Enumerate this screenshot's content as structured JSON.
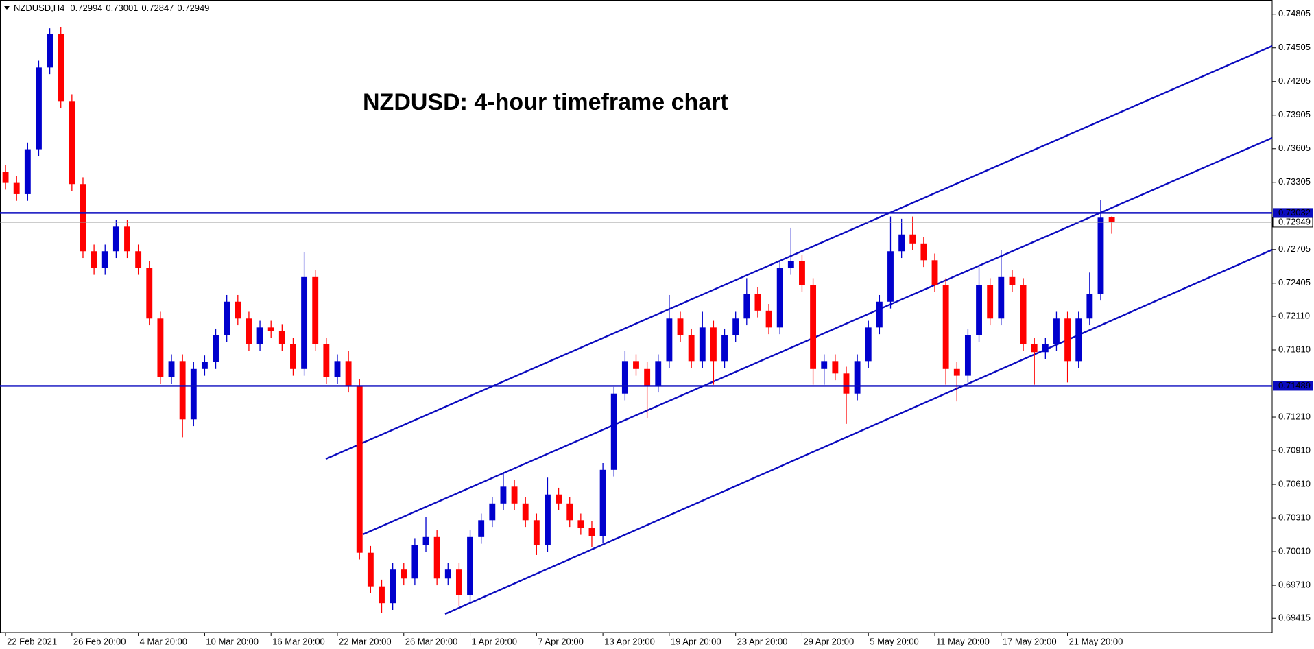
{
  "chart_data": {
    "type": "candlestick",
    "symbol": "NZDUSD,H4",
    "title": "NZDUSD: 4-hour timeframe chart",
    "up_color": "#0000cd",
    "down_color": "#ff0000",
    "line_color": "#0b0bbf",
    "xlim": [
      -0.5,
      114.5
    ],
    "ylim": [
      0.69288,
      0.74932
    ],
    "xticks": [
      {
        "value": 0,
        "label": "22 Feb 2021"
      },
      {
        "value": 6,
        "label": "26 Feb 20:00"
      },
      {
        "value": 12,
        "label": "4 Mar 20:00"
      },
      {
        "value": 18,
        "label": "10 Mar 20:00"
      },
      {
        "value": 24,
        "label": "16 Mar 20:00"
      },
      {
        "value": 30,
        "label": "22 Mar 20:00"
      },
      {
        "value": 36,
        "label": "26 Mar 20:00"
      },
      {
        "value": 42,
        "label": "1 Apr 20:00"
      },
      {
        "value": 48,
        "label": "7 Apr 20:00"
      },
      {
        "value": 54,
        "label": "13 Apr 20:00"
      },
      {
        "value": 60,
        "label": "19 Apr 20:00"
      },
      {
        "value": 66,
        "label": "23 Apr 20:00"
      },
      {
        "value": 72,
        "label": "29 Apr 20:00"
      },
      {
        "value": 78,
        "label": "5 May 20:00"
      },
      {
        "value": 84,
        "label": "11 May 20:00"
      },
      {
        "value": 90,
        "label": "17 May 20:00"
      },
      {
        "value": 96,
        "label": "21 May 20:00"
      }
    ],
    "yticks": [
      0.74805,
      0.74505,
      0.74205,
      0.73905,
      0.73605,
      0.73305,
      0.72705,
      0.72405,
      {
        "value": 0.7211,
        "label": "0.72110"
      },
      {
        "value": 0.7181,
        "label": "0.71810"
      },
      {
        "value": 0.7121,
        "label": "0.71210"
      },
      {
        "value": 0.7091,
        "label": "0.70910"
      },
      {
        "value": 0.7061,
        "label": "0.70610"
      },
      {
        "value": 0.7031,
        "label": "0.70310"
      },
      {
        "value": 0.7001,
        "label": "0.70010"
      },
      {
        "value": 0.6971,
        "label": "0.69710"
      },
      0.69415
    ],
    "hlines": [
      0.73032,
      0.71489
    ],
    "current_price": 0.72949,
    "open": [
      0.734,
      0.733,
      0.732,
      0.736,
      0.7433,
      0.7463,
      0.7403,
      0.7329,
      0.7269,
      0.7254,
      0.7269,
      0.7291,
      0.7269,
      0.7254,
      0.7209,
      0.7157,
      0.7171,
      0.7119,
      0.7164,
      0.717,
      0.7194,
      0.7224,
      0.7209,
      0.7186,
      0.7201,
      0.7198,
      0.7186,
      0.7164,
      0.7246,
      0.7186,
      0.7157,
      0.7171,
      0.7149,
      0.7,
      0.697,
      0.6955,
      0.6985,
      0.6977,
      0.7007,
      0.7014,
      0.6977,
      0.6985,
      0.6962,
      0.7014,
      0.7029,
      0.7044,
      0.7059,
      0.7044,
      0.7029,
      0.7007,
      0.7052,
      0.7044,
      0.7029,
      0.7022,
      0.7015,
      0.7074,
      0.7142,
      0.7171,
      0.7164,
      0.7149,
      0.7171,
      0.7209,
      0.7194,
      0.7171,
      0.7201,
      0.7171,
      0.7194,
      0.7209,
      0.7231,
      0.7216,
      0.7201,
      0.7254,
      0.726,
      0.7239,
      0.7164,
      0.7171,
      0.716,
      0.7142,
      0.7171,
      0.7201,
      0.7224,
      0.7269,
      0.7284,
      0.7276,
      0.7261,
      0.7239,
      0.7164,
      0.7158,
      0.7194,
      0.7239,
      0.7209,
      0.7246,
      0.7239,
      0.7186,
      0.7179,
      0.7186,
      0.7209,
      0.7171,
      0.7209,
      0.7231,
      0.72994
    ],
    "high": [
      0.7346,
      0.7336,
      0.7366,
      0.7439,
      0.7468,
      0.7469,
      0.7409,
      0.7335,
      0.7275,
      0.7275,
      0.7297,
      0.7297,
      0.7275,
      0.726,
      0.7215,
      0.7177,
      0.7177,
      0.717,
      0.7176,
      0.72,
      0.723,
      0.723,
      0.7215,
      0.7207,
      0.7207,
      0.7204,
      0.7192,
      0.7268,
      0.7252,
      0.7192,
      0.7177,
      0.718,
      0.7155,
      0.7006,
      0.6976,
      0.6991,
      0.6991,
      0.7013,
      0.7032,
      0.702,
      0.6991,
      0.6991,
      0.702,
      0.7035,
      0.705,
      0.7072,
      0.7065,
      0.705,
      0.7035,
      0.7067,
      0.7058,
      0.705,
      0.7035,
      0.7028,
      0.708,
      0.7148,
      0.718,
      0.7177,
      0.717,
      0.7177,
      0.723,
      0.7215,
      0.72,
      0.7215,
      0.7207,
      0.72,
      0.7215,
      0.7245,
      0.7237,
      0.7222,
      0.726,
      0.729,
      0.7266,
      0.7245,
      0.7177,
      0.7177,
      0.7166,
      0.7177,
      0.7207,
      0.723,
      0.73,
      0.7298,
      0.73,
      0.7282,
      0.7267,
      0.7245,
      0.717,
      0.72,
      0.7255,
      0.7245,
      0.727,
      0.7252,
      0.7245,
      0.7192,
      0.7192,
      0.7215,
      0.7215,
      0.7215,
      0.725,
      0.7315,
      0.73001
    ],
    "low": [
      0.7324,
      0.7314,
      0.7314,
      0.7354,
      0.7427,
      0.7397,
      0.7323,
      0.7263,
      0.7248,
      0.7248,
      0.7263,
      0.7263,
      0.7248,
      0.7203,
      0.7151,
      0.7151,
      0.7103,
      0.7113,
      0.7158,
      0.7164,
      0.7188,
      0.7203,
      0.718,
      0.718,
      0.7192,
      0.718,
      0.7158,
      0.7158,
      0.718,
      0.7151,
      0.7151,
      0.7143,
      0.6994,
      0.6964,
      0.6946,
      0.6949,
      0.6971,
      0.6971,
      0.7001,
      0.6971,
      0.6971,
      0.6952,
      0.6956,
      0.7008,
      0.7023,
      0.7038,
      0.7038,
      0.7023,
      0.6998,
      0.7001,
      0.7038,
      0.7023,
      0.7016,
      0.7005,
      0.7009,
      0.7068,
      0.7136,
      0.7158,
      0.712,
      0.7143,
      0.7165,
      0.7188,
      0.7165,
      0.7165,
      0.715,
      0.7165,
      0.7188,
      0.7203,
      0.721,
      0.7195,
      0.7195,
      0.7248,
      0.7233,
      0.715,
      0.715,
      0.7154,
      0.7115,
      0.7136,
      0.7165,
      0.7195,
      0.7218,
      0.7263,
      0.727,
      0.7255,
      0.7233,
      0.715,
      0.7135,
      0.7152,
      0.7188,
      0.7203,
      0.7203,
      0.7233,
      0.718,
      0.715,
      0.7173,
      0.718,
      0.7152,
      0.7165,
      0.7203,
      0.7225,
      0.72847
    ],
    "close": [
      0.733,
      0.732,
      0.736,
      0.7433,
      0.7463,
      0.7403,
      0.7329,
      0.7269,
      0.7254,
      0.7269,
      0.7291,
      0.7269,
      0.7254,
      0.7209,
      0.7157,
      0.7171,
      0.7119,
      0.7164,
      0.717,
      0.7194,
      0.7224,
      0.7209,
      0.7186,
      0.7201,
      0.7198,
      0.7186,
      0.7164,
      0.7246,
      0.7186,
      0.7157,
      0.7171,
      0.7149,
      0.7,
      0.697,
      0.6955,
      0.6985,
      0.6977,
      0.7007,
      0.7014,
      0.6977,
      0.6985,
      0.6962,
      0.7014,
      0.7029,
      0.7044,
      0.7059,
      0.7044,
      0.7029,
      0.7007,
      0.7052,
      0.7044,
      0.7029,
      0.7022,
      0.7015,
      0.7074,
      0.7142,
      0.7171,
      0.7164,
      0.7149,
      0.7171,
      0.7209,
      0.7194,
      0.7171,
      0.7201,
      0.7171,
      0.7194,
      0.7209,
      0.7231,
      0.7216,
      0.7201,
      0.7254,
      0.726,
      0.7239,
      0.7164,
      0.7171,
      0.716,
      0.7142,
      0.7171,
      0.7201,
      0.7224,
      0.7269,
      0.7284,
      0.7276,
      0.7261,
      0.7239,
      0.7164,
      0.7158,
      0.7194,
      0.7239,
      0.7209,
      0.7246,
      0.7239,
      0.7186,
      0.7179,
      0.7186,
      0.7209,
      0.7171,
      0.7209,
      0.7231,
      0.7299,
      0.72949
    ]
  }
}
